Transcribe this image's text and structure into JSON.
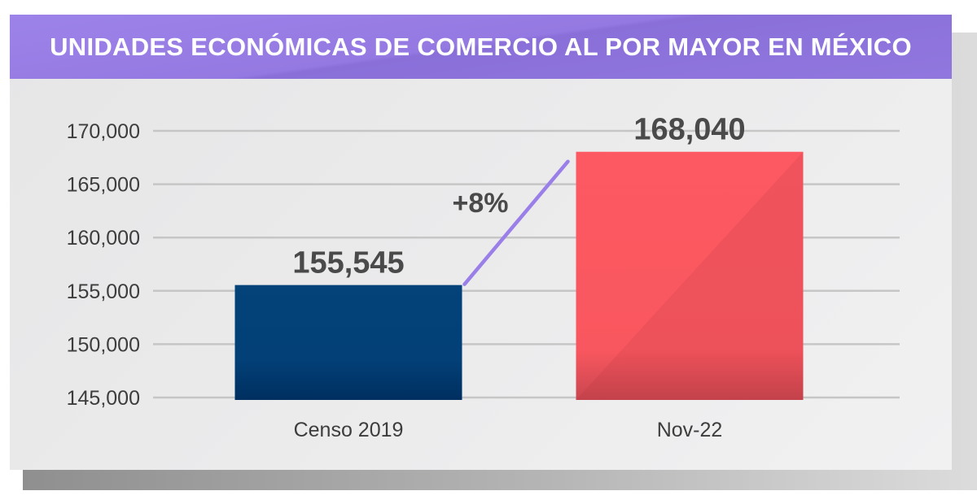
{
  "chart_data": {
    "type": "bar",
    "title": "UNIDADES ECONÓMICAS DE COMERCIO AL POR MAYOR EN MÉXICO",
    "categories": [
      "Censo 2019",
      "Nov-22"
    ],
    "values": [
      155545,
      168040
    ],
    "data_labels": [
      "155,545",
      "168,040"
    ],
    "colors": [
      "#034178",
      "#fc5860"
    ],
    "growth_label": "+8%",
    "growth_line_color": "#9a7fe8",
    "ylim": [
      145000,
      170000
    ],
    "yticks": [
      145000,
      150000,
      155000,
      160000,
      165000,
      170000
    ],
    "ytick_labels": [
      "145,000",
      "150,000",
      "155,000",
      "160,000",
      "165,000",
      "170,000"
    ],
    "grid": true
  }
}
